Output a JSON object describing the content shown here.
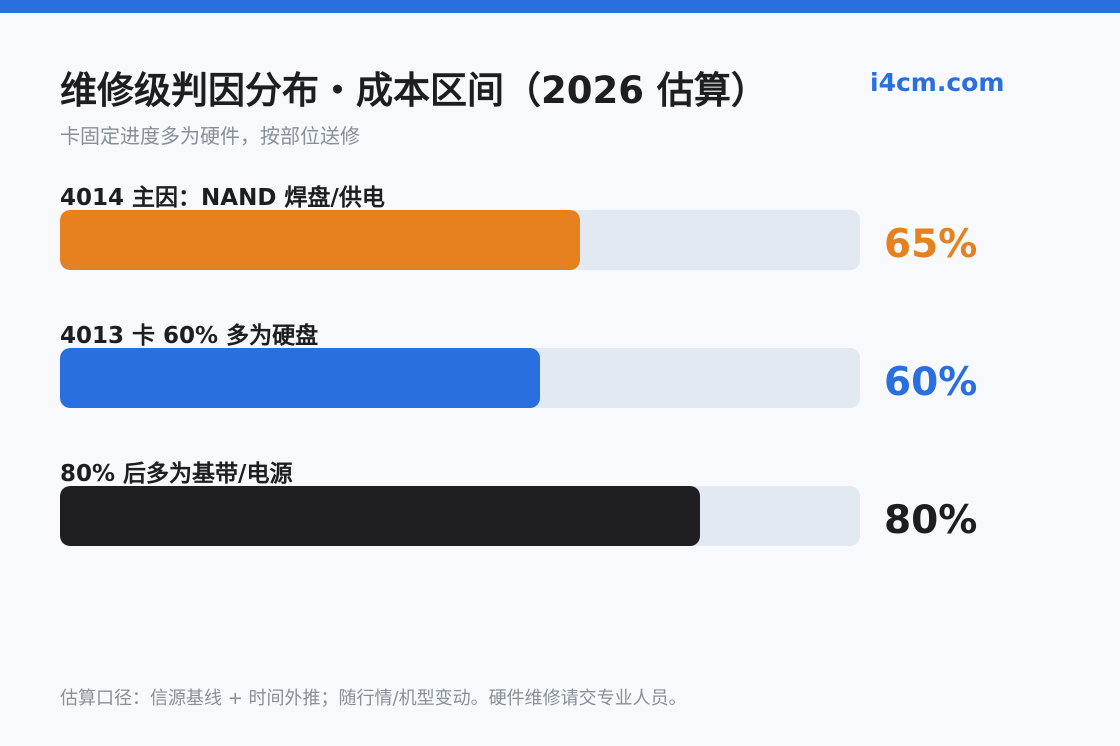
{
  "header": {
    "title": "维修级判因分布・成本区间（2026 估算）",
    "brand": "i4cm.com",
    "subtitle": "卡固定进度多为硬件，按部位送修"
  },
  "chart_data": {
    "type": "bar",
    "orientation": "horizontal",
    "title": "维修级判因分布・成本区间（2026 估算）",
    "subtitle": "卡固定进度多为硬件，按部位送修",
    "xlim": [
      0,
      100
    ],
    "grid": false,
    "categories": [
      "4014 主因：NAND 焊盘/供电",
      "4013 卡 60% 多为硬盘",
      "80% 后多为基带/电源"
    ],
    "values": [
      65,
      60,
      80
    ],
    "value_labels": [
      "65%",
      "60%",
      "80%"
    ],
    "colors": [
      "#e5821f",
      "#2a6fe0",
      "#1e1e22"
    ],
    "track_color": "#e3e9f2"
  },
  "footer": {
    "note": "估算口径：信源基线 + 时间外推；随行情/机型变动。硬件维修请交专业人员。"
  },
  "theme": {
    "accent": "#2a6fe0"
  }
}
